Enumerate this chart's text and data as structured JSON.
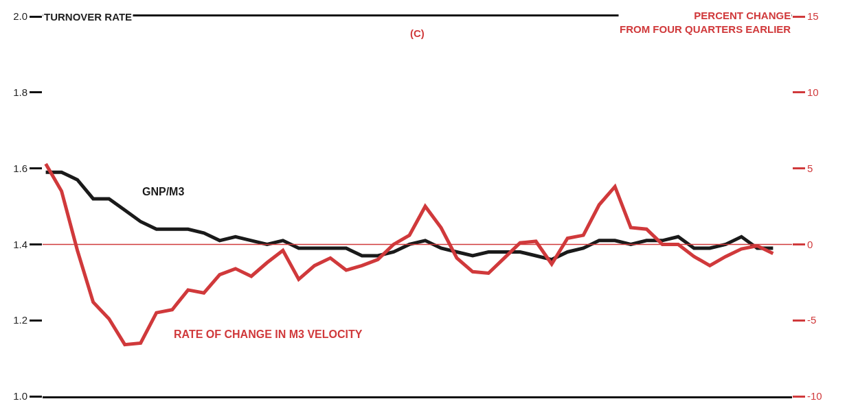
{
  "chart_data": {
    "type": "line",
    "ylabel": "TURNOVER RATE",
    "y2label": "PERCENT CHANGE FROM FOUR QUARTERS EARLIER",
    "annotations": [
      "(C)"
    ],
    "categories": [
      null,
      null,
      null,
      null,
      null,
      null,
      null,
      null,
      null,
      null,
      null,
      null,
      null,
      null,
      null,
      null,
      null,
      null,
      null,
      null,
      null,
      null,
      null,
      null,
      null,
      null,
      null,
      null,
      null,
      null,
      null,
      null,
      null,
      null,
      null,
      null,
      null,
      null,
      null,
      null,
      null,
      null,
      null,
      null,
      null,
      null,
      null
    ],
    "series": [
      {
        "name": "GNP/M3",
        "color": "#1a1a1a",
        "values": [
          1.59,
          1.59,
          1.57,
          1.52,
          1.52,
          1.49,
          1.46,
          1.44,
          1.44,
          1.44,
          1.43,
          1.41,
          1.42,
          1.41,
          1.4,
          1.41,
          1.39,
          1.39,
          1.39,
          1.39,
          1.37,
          1.37,
          1.38,
          1.4,
          1.41,
          1.39,
          1.38,
          1.37,
          1.38,
          1.38,
          1.38,
          1.37,
          1.36,
          1.38,
          1.39,
          1.41,
          1.41,
          1.4,
          1.41,
          1.41,
          1.42,
          1.39,
          1.39,
          1.4,
          1.42,
          1.39,
          1.39
        ]
      },
      {
        "name": "RATE OF CHANGE IN M3 VELOCITY",
        "color": "#d0393b",
        "axis": "y2",
        "values": [
          5.3,
          3.5,
          -0.4,
          -3.8,
          -4.9,
          -6.6,
          -6.5,
          -4.5,
          -4.3,
          -3.0,
          -3.2,
          -2.0,
          -1.6,
          -2.1,
          -1.2,
          -0.4,
          -2.3,
          -1.4,
          -0.9,
          -1.7,
          -1.4,
          -1.0,
          0.0,
          0.6,
          2.5,
          1.1,
          -0.9,
          -1.8,
          -1.9,
          -0.9,
          0.1,
          0.2,
          -1.3,
          0.4,
          0.6,
          2.6,
          3.8,
          1.1,
          1.0,
          0.0,
          0.0,
          -0.8,
          -1.4,
          -0.8,
          -0.3,
          -0.1,
          -0.6
        ]
      }
    ],
    "ylim": [
      1.0,
      2.0
    ],
    "yticks": [
      {
        "value": 1.0,
        "label": "1.0"
      },
      {
        "value": 1.2,
        "label": "1.2"
      },
      {
        "value": 1.4,
        "label": "1.4"
      },
      {
        "value": 1.6,
        "label": "1.6"
      },
      {
        "value": 1.8,
        "label": "1.8"
      },
      {
        "value": 2.0,
        "label": "2.0"
      }
    ],
    "y2lim": [
      -10,
      15
    ],
    "y2ticks": [
      -10,
      -5,
      0,
      5,
      10,
      15
    ],
    "ref_lines": [
      {
        "axis": "y2",
        "value": 0,
        "color": "#d0393b"
      }
    ],
    "tick_labels": "y",
    "legend": false,
    "marker": "none",
    "line_style": "solid"
  }
}
